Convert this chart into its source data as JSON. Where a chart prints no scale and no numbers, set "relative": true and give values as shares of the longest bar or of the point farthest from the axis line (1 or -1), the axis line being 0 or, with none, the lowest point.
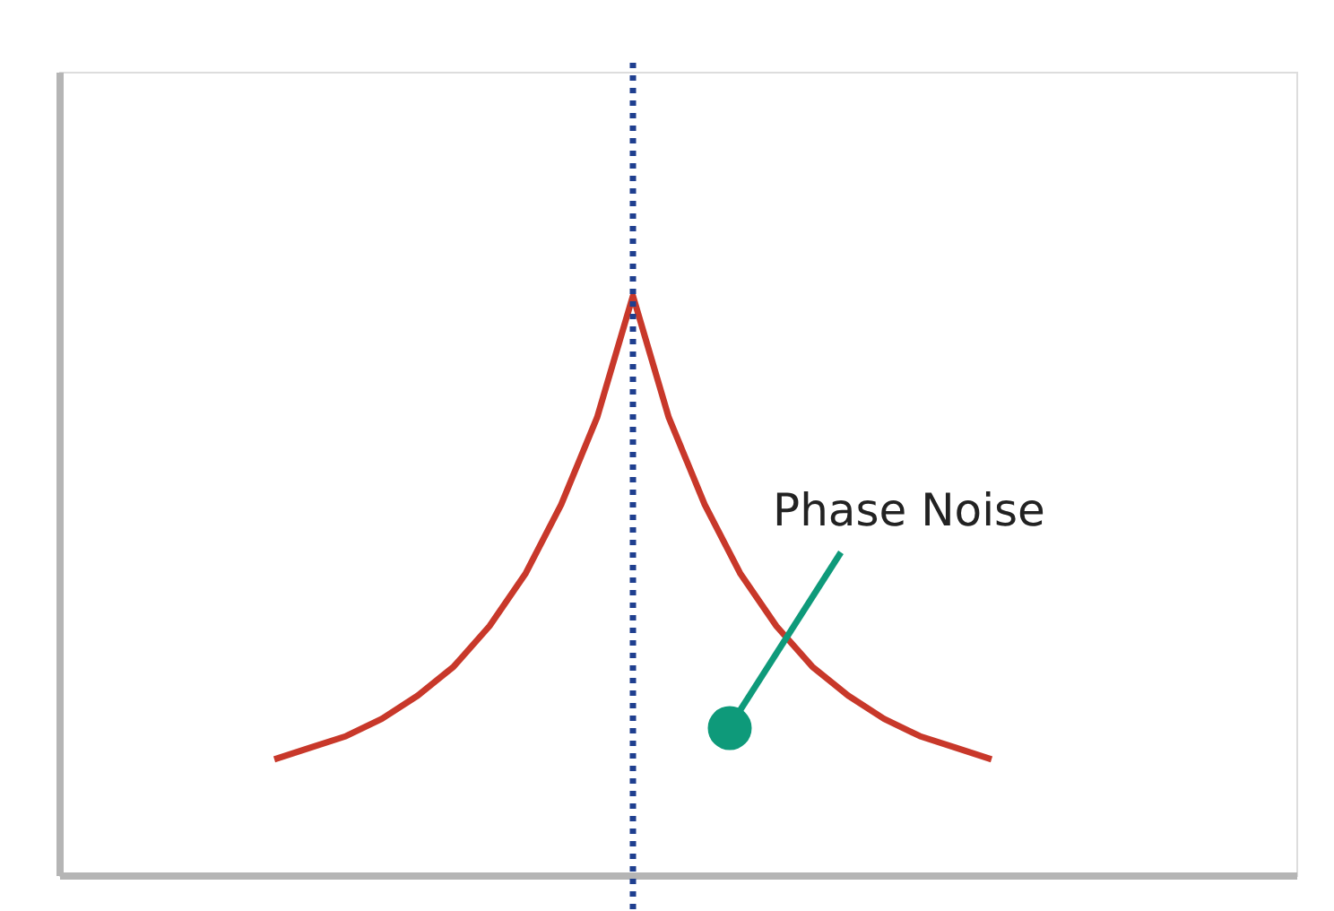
{
  "chart_data": {
    "type": "line",
    "relative": true,
    "categories": [
      null,
      null,
      null,
      null,
      null,
      null,
      null,
      null,
      null,
      null,
      null,
      null,
      null,
      null,
      null,
      null,
      null,
      null,
      null,
      null,
      null
    ],
    "series": [
      {
        "color": "#c8382a",
        "values": [
          0.2,
          0.22,
          0.24,
          0.27,
          0.31,
          0.36,
          0.43,
          0.52,
          0.64,
          0.79,
          1,
          0.79,
          0.64,
          0.52,
          0.43,
          0.36,
          0.31,
          0.27,
          0.24,
          0.22,
          0.2
        ]
      }
    ],
    "annotations": [
      "Phase Noise"
    ],
    "grid": false,
    "tick_labels": false,
    "marker": "none",
    "line_style": "solid"
  }
}
